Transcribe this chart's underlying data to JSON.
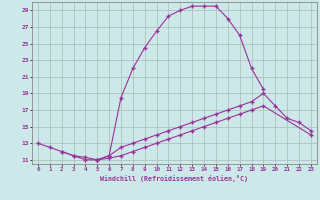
{
  "xlabel": "Windchill (Refroidissement éolien,°C)",
  "bg_color": "#cce8e8",
  "grid_color": "#aabbbb",
  "line_color": "#993399",
  "xlim": [
    -0.5,
    23.5
  ],
  "ylim": [
    10.5,
    30.0
  ],
  "xticks": [
    0,
    1,
    2,
    3,
    4,
    5,
    6,
    7,
    8,
    9,
    10,
    11,
    12,
    13,
    14,
    15,
    16,
    17,
    18,
    19,
    20,
    21,
    22,
    23
  ],
  "yticks": [
    11,
    13,
    15,
    17,
    19,
    21,
    23,
    25,
    27,
    29
  ],
  "line1_x": [
    0,
    1,
    2,
    3,
    4,
    5,
    6,
    7,
    8,
    9,
    10,
    11,
    12,
    13,
    14,
    15,
    16,
    17,
    18,
    19
  ],
  "line1_y": [
    13.0,
    12.5,
    12.0,
    11.5,
    11.0,
    11.0,
    11.5,
    18.5,
    22.0,
    24.5,
    26.5,
    28.3,
    29.0,
    29.5,
    29.5,
    29.5,
    28.0,
    26.0,
    22.0,
    19.5
  ],
  "line2_x": [
    2,
    3,
    4,
    5,
    6,
    7,
    8,
    9,
    10,
    11,
    12,
    13,
    14,
    15,
    16,
    17,
    18,
    19,
    20,
    21,
    22,
    23
  ],
  "line2_y": [
    12.0,
    11.5,
    11.3,
    11.0,
    11.5,
    12.5,
    13.0,
    13.5,
    14.0,
    14.5,
    15.0,
    15.5,
    16.0,
    16.5,
    17.0,
    17.5,
    18.0,
    19.0,
    17.5,
    16.0,
    15.5,
    14.5
  ],
  "line3_x": [
    5,
    6,
    7,
    8,
    9,
    10,
    11,
    12,
    13,
    14,
    15,
    16,
    17,
    18,
    19,
    23
  ],
  "line3_y": [
    11.0,
    11.2,
    11.5,
    12.0,
    12.5,
    13.0,
    13.5,
    14.0,
    14.5,
    15.0,
    15.5,
    16.0,
    16.5,
    17.0,
    17.5,
    14.0
  ]
}
